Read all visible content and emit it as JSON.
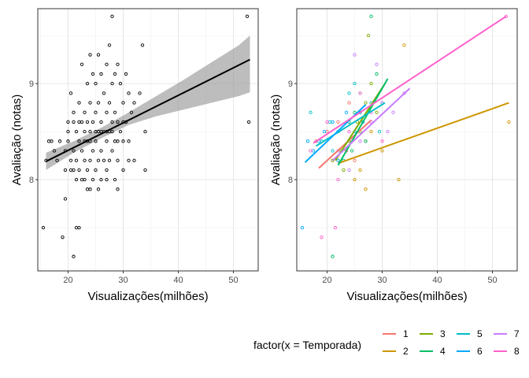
{
  "chart_data": [
    {
      "type": "scatter",
      "xlabel": "Visualizações(milhões)",
      "ylabel": "Avaliação (notas)",
      "xlim": [
        14.5,
        54.5
      ],
      "ylim": [
        7.05,
        9.78
      ],
      "xticks": [
        "20",
        "30",
        "40",
        "50"
      ],
      "yticks": [
        "8",
        "9"
      ],
      "grid": true,
      "point_color": "#000000",
      "points": [
        [
          15.5,
          7.5
        ],
        [
          16.0,
          8.2
        ],
        [
          16.5,
          8.4
        ],
        [
          17.0,
          8.4
        ],
        [
          17.5,
          8.3
        ],
        [
          18.0,
          8.2
        ],
        [
          18.5,
          8.4
        ],
        [
          19.0,
          7.4
        ],
        [
          19.5,
          8.1
        ],
        [
          19.5,
          7.8
        ],
        [
          20.0,
          8.6
        ],
        [
          20.0,
          8.4
        ],
        [
          20.5,
          8.9
        ],
        [
          20.5,
          8.2
        ],
        [
          21.0,
          8.7
        ],
        [
          21.0,
          8.3
        ],
        [
          21.0,
          8.1
        ],
        [
          21.5,
          8.5
        ],
        [
          21.5,
          8.2
        ],
        [
          21.5,
          7.5
        ],
        [
          22.0,
          8.8
        ],
        [
          22.0,
          8.4
        ],
        [
          22.0,
          8.1
        ],
        [
          22.0,
          7.5
        ],
        [
          22.5,
          9.2
        ],
        [
          22.5,
          8.6
        ],
        [
          22.5,
          8.3
        ],
        [
          23.0,
          8.7
        ],
        [
          23.0,
          8.5
        ],
        [
          23.0,
          8.2
        ],
        [
          23.0,
          8.0
        ],
        [
          23.5,
          9.0
        ],
        [
          23.5,
          8.6
        ],
        [
          23.5,
          8.4
        ],
        [
          23.5,
          8.1
        ],
        [
          23.5,
          7.9
        ],
        [
          24.0,
          9.3
        ],
        [
          24.0,
          8.8
        ],
        [
          24.0,
          8.5
        ],
        [
          24.0,
          8.2
        ],
        [
          24.5,
          9.1
        ],
        [
          24.5,
          8.6
        ],
        [
          24.5,
          8.3
        ],
        [
          24.5,
          8.0
        ],
        [
          25.0,
          9.0
        ],
        [
          25.0,
          8.7
        ],
        [
          25.0,
          8.4
        ],
        [
          25.0,
          8.1
        ],
        [
          25.5,
          9.3
        ],
        [
          25.5,
          8.8
        ],
        [
          25.5,
          8.5
        ],
        [
          25.5,
          8.2
        ],
        [
          26.0,
          9.1
        ],
        [
          26.0,
          8.6
        ],
        [
          26.0,
          8.3
        ],
        [
          26.0,
          8.0
        ],
        [
          26.5,
          8.9
        ],
        [
          26.5,
          8.5
        ],
        [
          26.5,
          8.2
        ],
        [
          27.0,
          9.2
        ],
        [
          27.0,
          8.7
        ],
        [
          27.0,
          8.4
        ],
        [
          27.0,
          8.1
        ],
        [
          27.5,
          9.4
        ],
        [
          27.5,
          8.8
        ],
        [
          27.5,
          8.5
        ],
        [
          27.5,
          8.2
        ],
        [
          28.0,
          9.7
        ],
        [
          28.0,
          9.0
        ],
        [
          28.0,
          8.6
        ],
        [
          28.0,
          8.3
        ],
        [
          28.5,
          9.1
        ],
        [
          28.5,
          8.7
        ],
        [
          28.5,
          8.4
        ],
        [
          29.0,
          9.2
        ],
        [
          29.0,
          8.6
        ],
        [
          29.0,
          8.2
        ],
        [
          29.0,
          7.9
        ],
        [
          29.5,
          9.0
        ],
        [
          29.5,
          8.5
        ],
        [
          30.0,
          8.8
        ],
        [
          30.0,
          8.4
        ],
        [
          30.0,
          8.1
        ],
        [
          30.5,
          9.1
        ],
        [
          30.5,
          8.6
        ],
        [
          31.0,
          8.9
        ],
        [
          31.0,
          8.4
        ],
        [
          31.5,
          8.7
        ],
        [
          32.0,
          8.8
        ],
        [
          32.0,
          8.2
        ],
        [
          33.0,
          8.9
        ],
        [
          33.5,
          9.4
        ],
        [
          34.0,
          8.5
        ],
        [
          34.0,
          8.1
        ],
        [
          20.0,
          8.5
        ],
        [
          21.0,
          8.6
        ],
        [
          22.0,
          8.6
        ],
        [
          23.0,
          8.4
        ],
        [
          24.0,
          8.4
        ],
        [
          25.0,
          8.5
        ],
        [
          26.0,
          8.5
        ],
        [
          27.0,
          8.5
        ],
        [
          28.0,
          8.5
        ],
        [
          29.0,
          8.4
        ],
        [
          30.0,
          8.6
        ],
        [
          19.5,
          8.3
        ],
        [
          20.5,
          8.1
        ],
        [
          21.5,
          8.0
        ],
        [
          22.5,
          8.0
        ],
        [
          24.0,
          7.9
        ],
        [
          25.5,
          7.9
        ],
        [
          27.0,
          8.0
        ],
        [
          28.5,
          8.0
        ],
        [
          31.0,
          8.2
        ],
        [
          21.0,
          7.2
        ],
        [
          52.5,
          9.7
        ],
        [
          52.8,
          8.6
        ]
      ],
      "fit": {
        "x": [
          16.0,
          53.0
        ],
        "y": [
          8.19,
          9.25
        ]
      },
      "ci": {
        "x": [
          16.0,
          21.0,
          26.0,
          31.0,
          36.0,
          41.0,
          46.0,
          51.0,
          53.0
        ],
        "lower": [
          8.1,
          8.28,
          8.43,
          8.57,
          8.66,
          8.73,
          8.8,
          8.87,
          8.91
        ],
        "upper": [
          8.28,
          8.4,
          8.54,
          8.7,
          8.87,
          9.04,
          9.22,
          9.4,
          9.5
        ]
      }
    },
    {
      "type": "scatter",
      "xlabel": "Visualizações(milhões)",
      "ylabel": "Avaliação (notas)",
      "xlim": [
        14.5,
        54.5
      ],
      "ylim": [
        7.05,
        9.78
      ],
      "xticks": [
        "20",
        "30",
        "40",
        "50"
      ],
      "yticks": [
        "8",
        "9"
      ],
      "grid": true,
      "legend_position": "bottom",
      "legend_title": "factor(x = Temporada)",
      "series": [
        {
          "name": "1",
          "color": "#F8766D",
          "line": {
            "x": [
              18.5,
              28.0
            ],
            "y": [
              8.12,
              8.62
            ]
          },
          "points": [
            [
              18.0,
              8.4
            ],
            [
              20.0,
              8.5
            ],
            [
              22.0,
              8.6
            ],
            [
              23.5,
              8.3
            ],
            [
              25.0,
              8.2
            ],
            [
              26.0,
              8.7
            ],
            [
              27.0,
              8.4
            ],
            [
              28.0,
              8.6
            ],
            [
              21.0,
              8.2
            ],
            [
              24.0,
              8.8
            ]
          ]
        },
        {
          "name": "2",
          "color": "#CD9600",
          "line": {
            "x": [
              22.0,
              53.0
            ],
            "y": [
              8.17,
              8.8
            ]
          },
          "points": [
            [
              22.0,
              8.2
            ],
            [
              24.0,
              8.4
            ],
            [
              26.0,
              8.1
            ],
            [
              28.0,
              8.5
            ],
            [
              30.0,
              8.3
            ],
            [
              33.0,
              8.0
            ],
            [
              34.0,
              9.4
            ],
            [
              53.0,
              8.6
            ],
            [
              25.0,
              8.0
            ],
            [
              27.0,
              7.9
            ]
          ]
        },
        {
          "name": "3",
          "color": "#7CAE00",
          "line": {
            "x": [
              21.5,
              30.5
            ],
            "y": [
              8.2,
              9.0
            ]
          },
          "points": [
            [
              21.0,
              8.2
            ],
            [
              22.5,
              8.3
            ],
            [
              24.0,
              8.4
            ],
            [
              25.5,
              8.6
            ],
            [
              27.0,
              8.8
            ],
            [
              28.0,
              9.0
            ],
            [
              29.0,
              8.7
            ],
            [
              27.5,
              9.5
            ],
            [
              23.0,
              8.1
            ],
            [
              26.0,
              8.5
            ]
          ]
        },
        {
          "name": "4",
          "color": "#00BE67",
          "line": {
            "x": [
              22.0,
              31.0
            ],
            "y": [
              8.15,
              9.05
            ]
          },
          "points": [
            [
              21.0,
              7.2
            ],
            [
              23.0,
              8.2
            ],
            [
              24.0,
              8.6
            ],
            [
              25.0,
              8.7
            ],
            [
              26.0,
              8.9
            ],
            [
              28.0,
              9.7
            ],
            [
              29.0,
              9.1
            ],
            [
              30.0,
              8.8
            ],
            [
              27.0,
              8.4
            ],
            [
              24.5,
              8.3
            ]
          ]
        },
        {
          "name": "5",
          "color": "#00BFC4",
          "line": {
            "x": [
              18.0,
              30.5
            ],
            "y": [
              8.35,
              8.8
            ]
          },
          "points": [
            [
              17.0,
              8.7
            ],
            [
              19.0,
              8.4
            ],
            [
              20.5,
              8.6
            ],
            [
              22.0,
              8.5
            ],
            [
              24.0,
              8.9
            ],
            [
              26.0,
              8.7
            ],
            [
              28.0,
              8.8
            ],
            [
              29.5,
              8.5
            ],
            [
              21.0,
              8.3
            ],
            [
              25.0,
              9.0
            ]
          ]
        },
        {
          "name": "6",
          "color": "#00A9FF",
          "line": {
            "x": [
              16.0,
              27.0
            ],
            "y": [
              8.18,
              8.78
            ]
          },
          "points": [
            [
              15.5,
              7.5
            ],
            [
              16.5,
              8.4
            ],
            [
              17.5,
              8.3
            ],
            [
              18.5,
              8.4
            ],
            [
              19.5,
              8.5
            ],
            [
              21.0,
              8.6
            ],
            [
              22.0,
              8.2
            ],
            [
              23.5,
              8.7
            ],
            [
              25.0,
              8.5
            ],
            [
              26.5,
              8.6
            ]
          ]
        },
        {
          "name": "7",
          "color": "#C77CFF",
          "line": {
            "x": [
              21.0,
              35.0
            ],
            "y": [
              8.2,
              8.95
            ]
          },
          "points": [
            [
              22.0,
              8.3
            ],
            [
              24.0,
              8.1
            ],
            [
              26.0,
              8.4
            ],
            [
              28.0,
              8.6
            ],
            [
              30.0,
              8.8
            ],
            [
              32.0,
              8.7
            ],
            [
              34.0,
              8.9
            ],
            [
              25.0,
              9.3
            ],
            [
              29.0,
              9.2
            ],
            [
              31.0,
              8.5
            ]
          ]
        },
        {
          "name": "8",
          "color": "#FF61CC",
          "line": {
            "x": [
              17.5,
              52.5
            ],
            "y": [
              8.38,
              9.7
            ]
          },
          "points": [
            [
              17.0,
              8.3
            ],
            [
              19.0,
              7.4
            ],
            [
              20.0,
              8.6
            ],
            [
              21.5,
              7.5
            ],
            [
              22.0,
              8.0
            ],
            [
              24.0,
              8.5
            ],
            [
              26.0,
              8.9
            ],
            [
              28.0,
              8.7
            ],
            [
              52.5,
              9.7
            ],
            [
              30.0,
              8.4
            ]
          ]
        }
      ]
    }
  ]
}
